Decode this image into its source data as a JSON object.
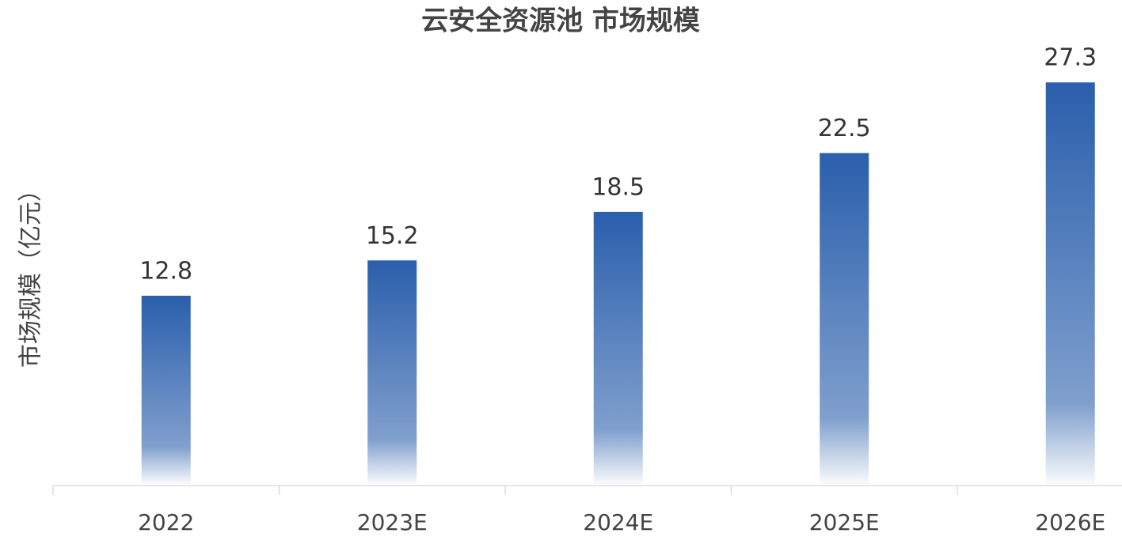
{
  "chart_data": {
    "type": "bar",
    "title": "云安全资源池 市场规模",
    "y_label": "市场规模（亿元）",
    "categories": [
      "2022",
      "2023E",
      "2024E",
      "2025E",
      "2026E"
    ],
    "values": [
      12.8,
      15.2,
      18.5,
      22.5,
      27.3
    ],
    "color": "#2a5fac",
    "ylim": [
      0,
      30
    ]
  }
}
